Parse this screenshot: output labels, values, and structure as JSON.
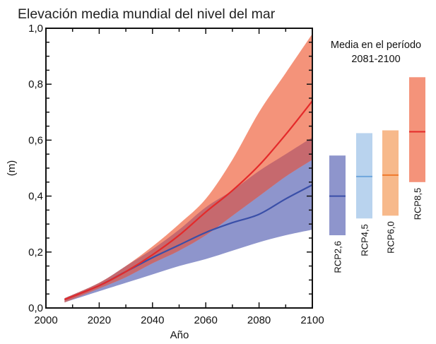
{
  "chart_data": {
    "type": "area",
    "title": "Elevación media mundial del nivel del mar",
    "xlabel": "Año",
    "ylabel": "(m)",
    "xlim": [
      2000,
      2100
    ],
    "ylim": [
      0,
      1.0
    ],
    "x_ticks": [
      "2000",
      "2020",
      "2040",
      "2060",
      "2080",
      "2100"
    ],
    "y_ticks": [
      "0,0",
      "0,2",
      "0,4",
      "0,6",
      "0,8",
      "1,0"
    ],
    "grid": false,
    "x": [
      2007,
      2020,
      2030,
      2040,
      2050,
      2060,
      2070,
      2080,
      2090,
      2100
    ],
    "series": [
      {
        "name": "RCP2,6",
        "color": "#3a4fa8",
        "band_color": "#8e95cc",
        "mean": [
          0.03,
          0.08,
          0.13,
          0.18,
          0.225,
          0.27,
          0.305,
          0.335,
          0.39,
          0.44
        ],
        "upper": [
          0.035,
          0.09,
          0.15,
          0.21,
          0.28,
          0.36,
          0.42,
          0.49,
          0.55,
          0.61
        ],
        "lower": [
          0.02,
          0.06,
          0.09,
          0.12,
          0.15,
          0.175,
          0.205,
          0.235,
          0.26,
          0.28
        ]
      },
      {
        "name": "RCP8,5",
        "color": "#e42a2a",
        "band_color": "#f4937a",
        "mean": [
          0.03,
          0.08,
          0.13,
          0.19,
          0.26,
          0.343,
          0.42,
          0.51,
          0.62,
          0.74
        ],
        "upper": [
          0.035,
          0.09,
          0.15,
          0.22,
          0.3,
          0.39,
          0.53,
          0.7,
          0.84,
          0.98
        ],
        "lower": [
          0.02,
          0.07,
          0.11,
          0.16,
          0.205,
          0.26,
          0.33,
          0.4,
          0.47,
          0.53
        ]
      }
    ],
    "legend_title": [
      "Media en el período",
      "2081-2100"
    ],
    "period_bars": [
      {
        "name": "RCP2,6",
        "low": 0.26,
        "mean": 0.4,
        "high": 0.545,
        "fill": "#8e95cc",
        "line": "#3a4fa8"
      },
      {
        "name": "RCP4,5",
        "low": 0.32,
        "mean": 0.47,
        "high": 0.625,
        "fill": "#b9d3ee",
        "line": "#6fa6dc"
      },
      {
        "name": "RCP6,0",
        "low": 0.33,
        "mean": 0.475,
        "high": 0.635,
        "fill": "#f7b98b",
        "line": "#f07a2c"
      },
      {
        "name": "RCP8,5",
        "low": 0.45,
        "mean": 0.63,
        "high": 0.825,
        "fill": "#f4937a",
        "line": "#e42a2a"
      }
    ],
    "overlap_color": "#c6696e"
  }
}
